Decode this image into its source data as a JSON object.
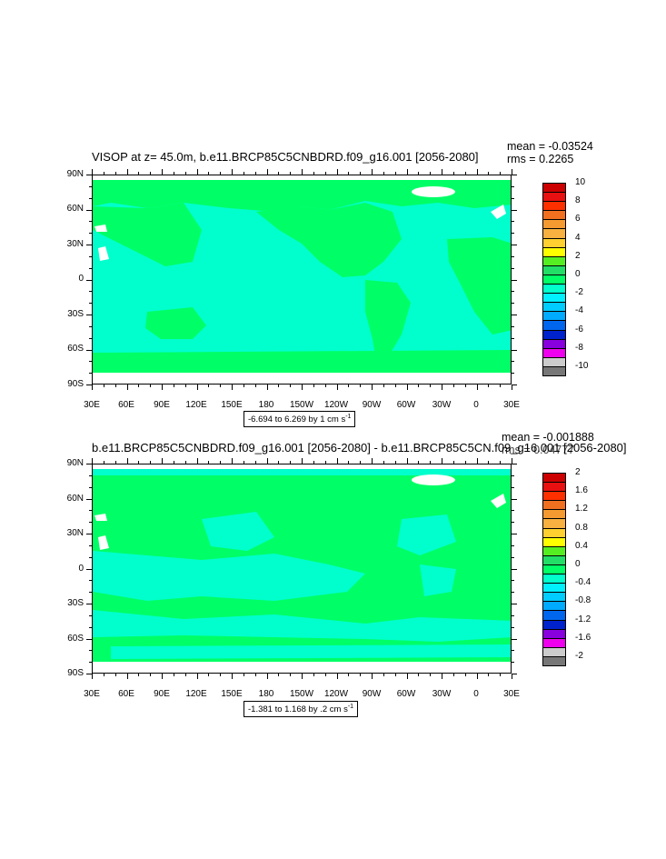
{
  "panels": [
    {
      "title": "VISOP at z=  45.0m, b.e11.BRCP85C5CNBDRD.f09_g16.001 [2056-2080]",
      "mean": "mean = -0.03524",
      "rms": "rms = 0.2265",
      "range_label": "-6.694 to 6.269 by 1 cm s",
      "range_unit_sup": "-1",
      "colorbar_labels": [
        "10",
        "8",
        "6",
        "4",
        "2",
        "0",
        "-2",
        "-4",
        "-6",
        "-8",
        "-10"
      ],
      "colorbar_colors": [
        "#cc0000",
        "#e81010",
        "#ff3000",
        "#f07020",
        "#f59a30",
        "#f8b040",
        "#ffd030",
        "#ffff00",
        "#55ee22",
        "#22dd66",
        "#00ff66",
        "#00ffcc",
        "#00f0ff",
        "#00ccff",
        "#00aaff",
        "#0066ee",
        "#0022cc",
        "#8800dd",
        "#ee00ee",
        "#cccccc",
        "#777777"
      ],
      "ocean_color": "#00ffcc",
      "land_color": "#00ff66"
    },
    {
      "title": "b.e11.BRCP85C5CNBDRD.f09_g16.001 [2056-2080] - b.e11.BRCP85C5CN.f09_g16.001 [2056-2080]",
      "mean": "mean = -0.001888",
      "rms": "rms = 0.04777",
      "range_label": "-1.381 to 1.168 by .2 cm s",
      "range_unit_sup": "-1",
      "colorbar_labels": [
        "2",
        "1.6",
        "1.2",
        "0.8",
        "0.4",
        "0",
        "-0.4",
        "-0.8",
        "-1.2",
        "-1.6",
        "-2"
      ],
      "colorbar_colors": [
        "#cc0000",
        "#e81010",
        "#ff3000",
        "#f07020",
        "#f59a30",
        "#f8b040",
        "#ffd030",
        "#ffff00",
        "#55ee22",
        "#22dd66",
        "#00ff66",
        "#00ffcc",
        "#00f0ff",
        "#00ccff",
        "#00aaff",
        "#0066ee",
        "#0022cc",
        "#8800dd",
        "#ee00ee",
        "#cccccc",
        "#777777"
      ],
      "ocean_color": "#00ffcc",
      "land_color": "#00ff66"
    }
  ],
  "lat_labels": [
    "90N",
    "60N",
    "30N",
    "0",
    "30S",
    "60S",
    "90S"
  ],
  "lon_labels": [
    "30E",
    "60E",
    "90E",
    "120E",
    "150E",
    "180",
    "150W",
    "120W",
    "90W",
    "60W",
    "30W",
    "0",
    "30E"
  ]
}
